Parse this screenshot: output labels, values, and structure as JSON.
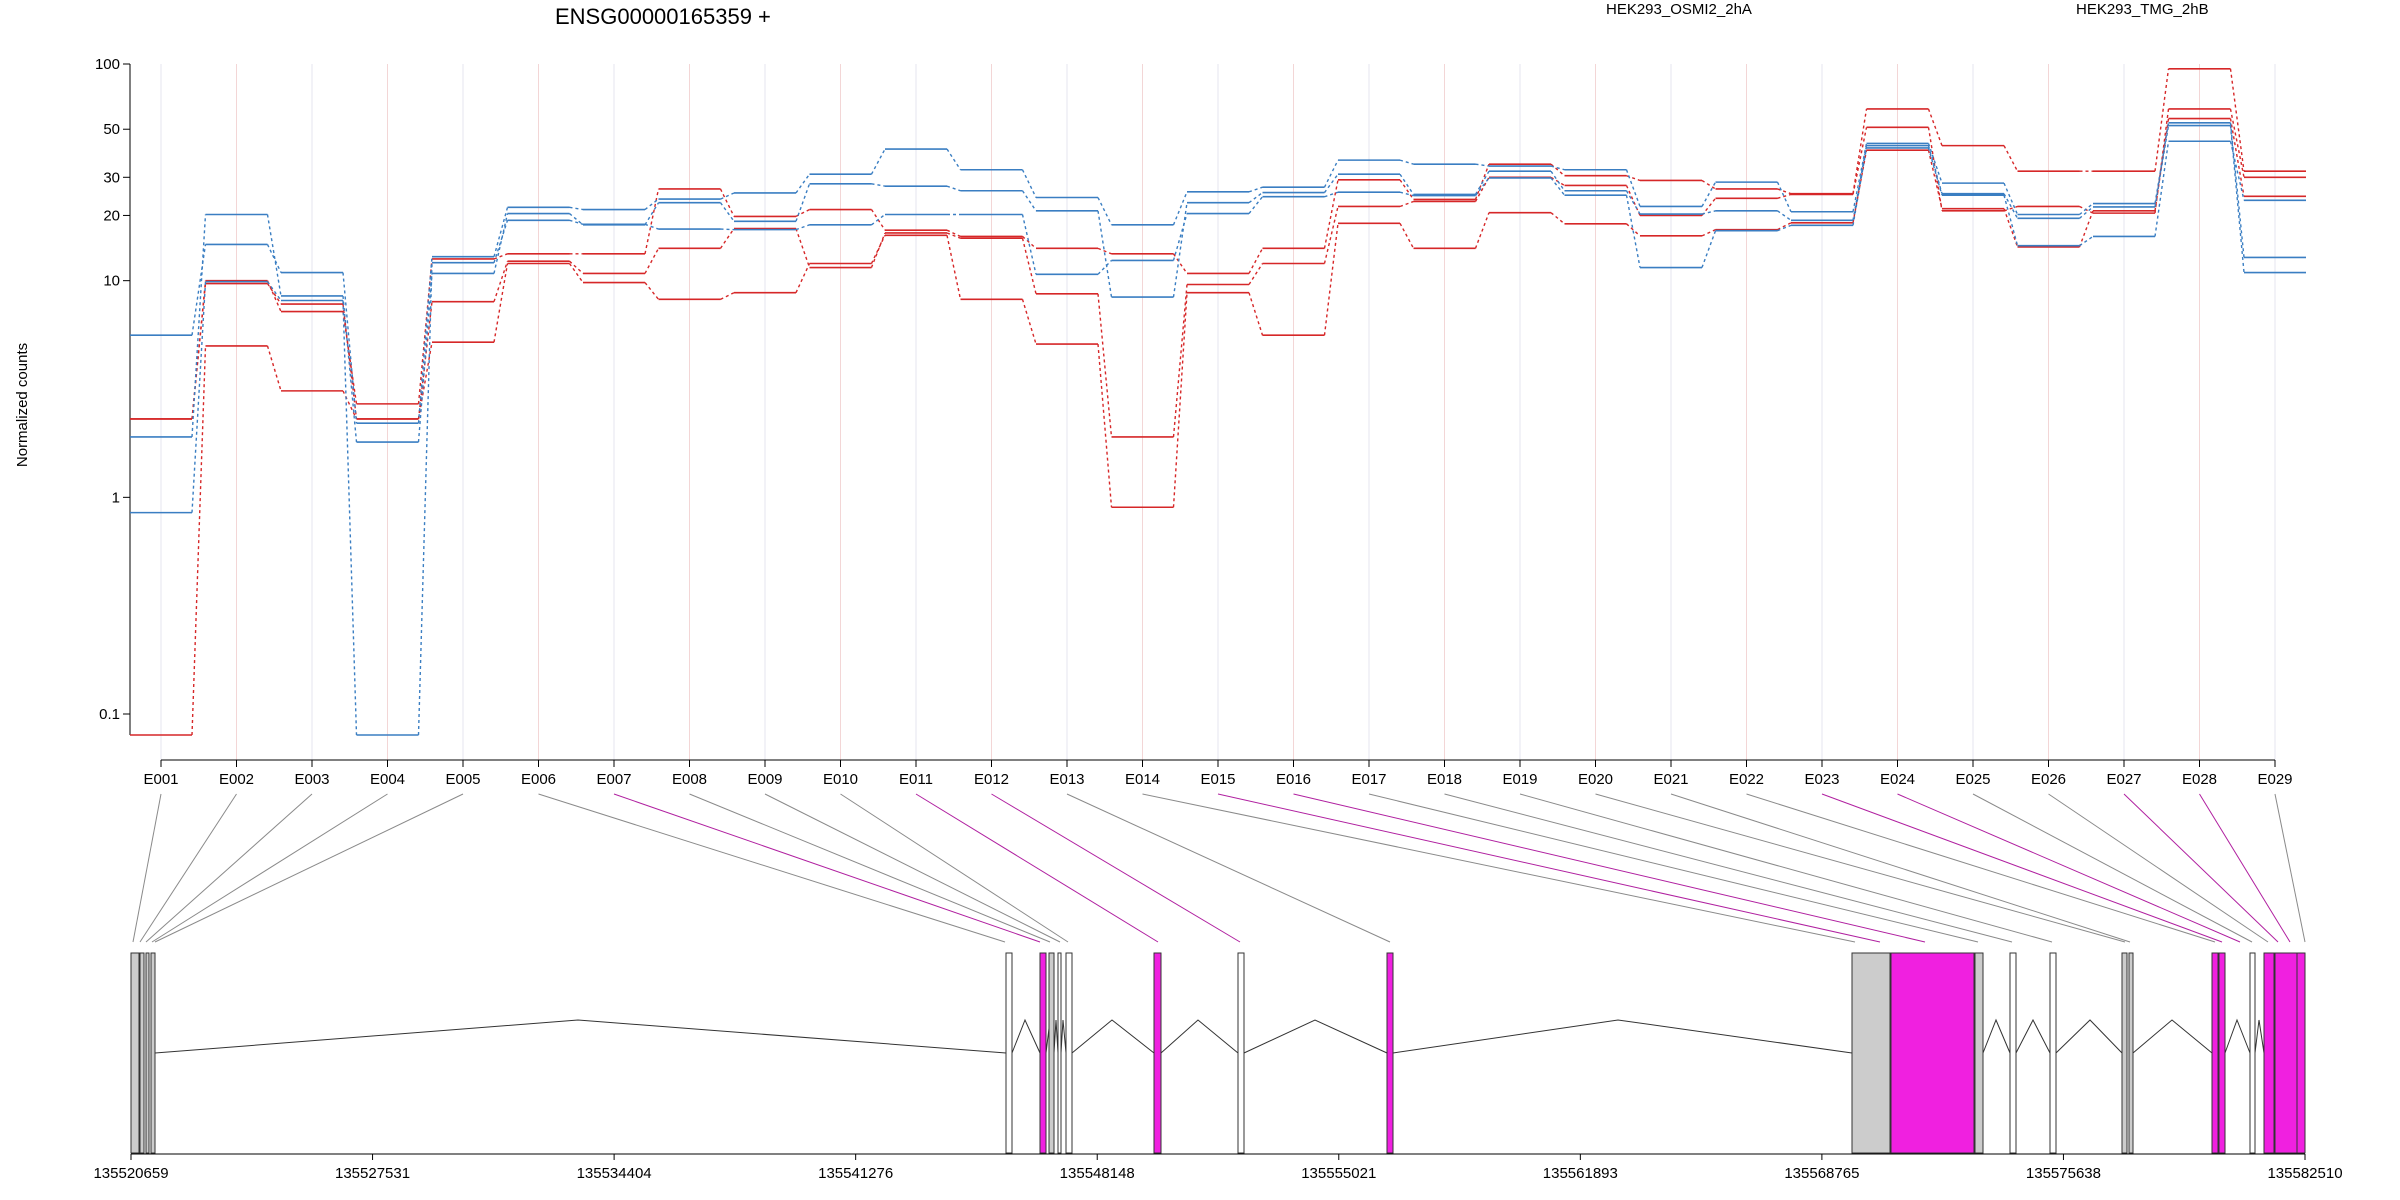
{
  "chart_data": {
    "type": "line",
    "title": "ENSG00000165359 +",
    "ylabel": "Normalized counts",
    "yscale": "log",
    "ylim": [
      0.08,
      100
    ],
    "yticks": [
      0.1,
      1,
      10,
      20,
      30,
      50,
      100
    ],
    "ytick_labels": [
      "0.1",
      "1",
      "10",
      "20",
      "30",
      "50",
      "100"
    ],
    "grid": "vertical",
    "legend": "top-right",
    "categories": [
      "E001",
      "E002",
      "E003",
      "E004",
      "E005",
      "E006",
      "E007",
      "E008",
      "E009",
      "E010",
      "E011",
      "E012",
      "E013",
      "E014",
      "E015",
      "E016",
      "E017",
      "E018",
      "E019",
      "E020",
      "E021",
      "E022",
      "E023",
      "E024",
      "E025",
      "E026",
      "E027",
      "E028",
      "E029"
    ],
    "legend_entries": [
      {
        "label": "HEK293_OSMI2_2hA",
        "color": "#d62728"
      },
      {
        "label": "HEK293_TMG_2hB",
        "color": "#3a7ec2"
      }
    ],
    "series": [
      {
        "group": "HEK293_OSMI2_2hA",
        "color": "#d62728",
        "values": [
          2.3,
          10,
          7.2,
          2.7,
          12.6,
          13.3,
          13.3,
          26.5,
          19.8,
          21.3,
          17.1,
          16,
          14.1,
          13.3,
          10.8,
          14.1,
          29.2,
          23.7,
          34.5,
          30.5,
          29,
          26.5,
          25.2,
          62,
          42,
          32,
          32,
          95,
          32
        ]
      },
      {
        "group": "HEK293_OSMI2_2hA",
        "color": "#d62728",
        "values": [
          2.3,
          9.7,
          7.8,
          2.3,
          8,
          12.3,
          10.8,
          14.1,
          17.4,
          11.5,
          16.6,
          15.7,
          8.7,
          1.9,
          9.6,
          12,
          22,
          23.2,
          30,
          27.5,
          20,
          24,
          25,
          51,
          21,
          22,
          20.5,
          62,
          30
        ]
      },
      {
        "group": "HEK293_OSMI2_2hA",
        "color": "#d62728",
        "values": [
          0.08,
          5,
          3.1,
          2.3,
          5.2,
          12,
          9.8,
          8.2,
          8.8,
          12,
          16.2,
          8.2,
          5.1,
          0.9,
          8.8,
          5.6,
          18.4,
          14.1,
          20.6,
          18.3,
          16.1,
          17.2,
          18.5,
          40,
          21.5,
          14.3,
          21,
          56,
          24.5
        ]
      },
      {
        "group": "HEK293_TMG_2hB",
        "color": "#3a7ec2",
        "values": [
          5.6,
          14.7,
          10.9,
          2.2,
          12.9,
          21.8,
          21.3,
          23.8,
          25.4,
          31,
          40.5,
          32.5,
          24.2,
          18.1,
          25.7,
          27,
          36,
          34.5,
          33.8,
          32.5,
          22,
          28.5,
          20.8,
          43,
          28.2,
          20.2,
          22.7,
          53.5,
          12.8
        ]
      },
      {
        "group": "HEK293_TMG_2hB",
        "color": "#3a7ec2",
        "values": [
          1.9,
          20.2,
          8.5,
          1.8,
          10.8,
          20.4,
          18.1,
          22.9,
          18.8,
          28,
          27.3,
          26,
          21,
          8.4,
          22.9,
          25.5,
          31,
          25,
          32,
          26,
          20.3,
          21,
          19,
          42,
          25.2,
          19.4,
          21.9,
          52,
          10.9
        ]
      },
      {
        "group": "HEK293_TMG_2hB",
        "color": "#3a7ec2",
        "values": [
          0.85,
          9.9,
          8.1,
          0.08,
          12.1,
          19,
          18.2,
          17.3,
          17.2,
          18.1,
          20.2,
          20.2,
          10.7,
          12.4,
          20.4,
          24.4,
          25.6,
          24.7,
          29.8,
          24.8,
          11.5,
          17,
          18,
          41,
          24.8,
          14.5,
          16,
          44,
          23.5
        ]
      }
    ],
    "gene_model": {
      "coordinate_labels": [
        "135520659",
        "135527531",
        "135534404",
        "135541276",
        "135548148",
        "135555021",
        "135561893",
        "135568765",
        "135575638",
        "135582510"
      ],
      "exon_highlight_color": "#f020e0",
      "exon_default_color": "#cccccc"
    }
  }
}
